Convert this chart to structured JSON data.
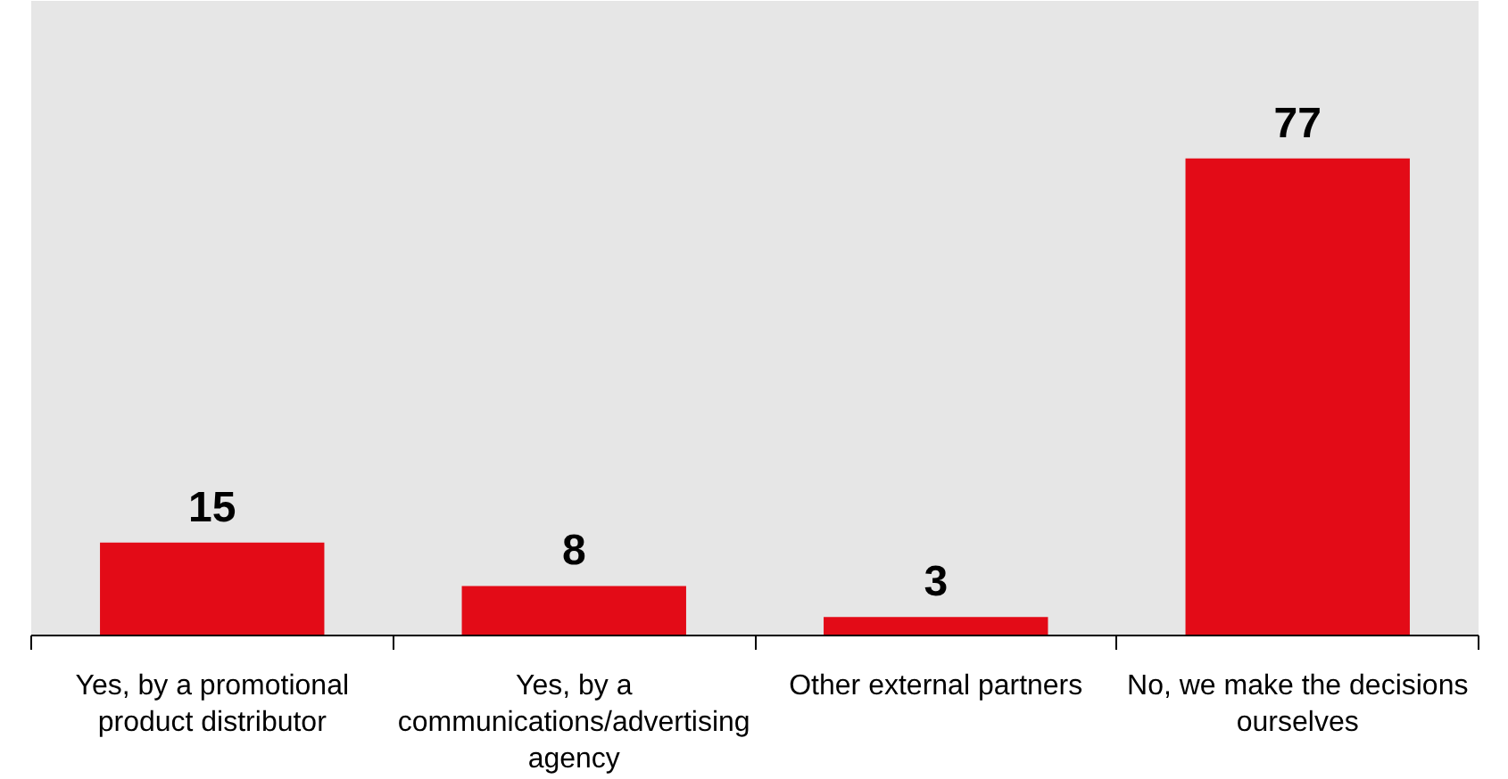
{
  "chart_data": {
    "type": "bar",
    "categories": [
      "Yes, by a promotional\nproduct distributor",
      "Yes, by a\ncommunications/advertising\nagency",
      "Other external partners",
      "No, we make the decisions\nourselves"
    ],
    "values": [
      15,
      8,
      3,
      77
    ],
    "color": "#e30b17",
    "data_labels": true
  }
}
